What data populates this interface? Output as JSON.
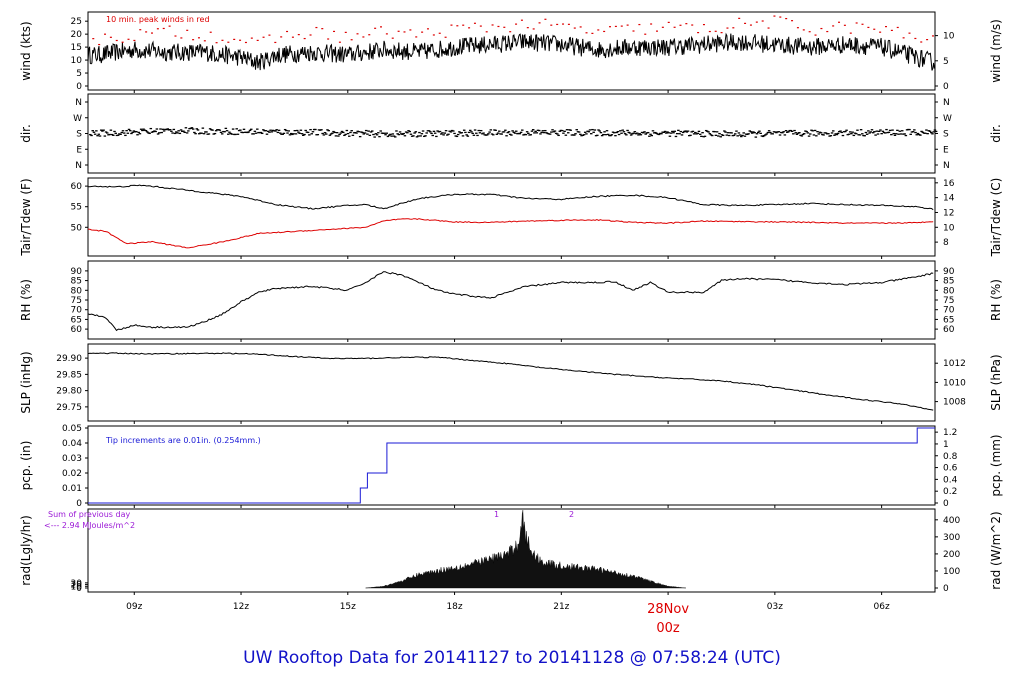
{
  "chart_data": {
    "type": "line",
    "x_ticks": [
      "09z",
      "12z",
      "15z",
      "18z",
      "21z",
      "00z",
      "03z",
      "06z"
    ],
    "date_label": "28Nov",
    "panels": [
      {
        "id": "wind",
        "left_label": "wind (kts)",
        "right_label": "wind (m/s)",
        "left_ticks": [
          0,
          5,
          10,
          15,
          20,
          25
        ],
        "right_ticks": [
          0,
          5,
          10
        ],
        "ylim": [
          0,
          27
        ],
        "annotation": "10 min. peak winds in red",
        "series": [
          {
            "color": "#000000",
            "style": "noisy",
            "x": [
              8.0,
              9.0,
              10.0,
              11.0,
              12.0,
              12.5,
              13.0,
              14.0,
              15.0,
              16.0,
              17.0,
              18.0,
              19.0,
              20.0,
              21.0,
              22.0,
              23.0,
              24.0,
              25.0,
              26.0,
              27.0,
              28.0,
              29.0,
              30.0,
              31.5
            ],
            "y": [
              12,
              14,
              13,
              13,
              11,
              9,
              12,
              13,
              12,
              14,
              13,
              15,
              16,
              17,
              16,
              14,
              15,
              15,
              16,
              17,
              16,
              15,
              16,
              15,
              9
            ],
            "noise": 3.5
          },
          {
            "color": "#dd0000",
            "style": "dots",
            "x": [
              8.0,
              9.0,
              10.0,
              11.0,
              12.0,
              12.5,
              13.0,
              14.0,
              15.0,
              16.0,
              17.0,
              18.0,
              19.0,
              20.0,
              21.0,
              22.0,
              23.0,
              24.0,
              25.0,
              26.0,
              27.0,
              28.0,
              29.0,
              30.0,
              31.5
            ],
            "y": [
              18,
              20,
              21,
              20,
              18,
              16,
              19,
              21,
              19,
              21,
              20,
              22,
              23,
              24,
              23,
              21,
              22,
              23,
              22,
              24,
              25,
              22,
              23,
              22,
              17
            ],
            "noise": 2.5
          }
        ]
      },
      {
        "id": "dir",
        "left_label": "dir.",
        "right_label": "dir.",
        "left_ticks": [
          "N",
          "E",
          "S",
          "W",
          "N"
        ],
        "right_ticks": [
          "N",
          "E",
          "S",
          "W",
          "N"
        ],
        "ylim": [
          0,
          360
        ],
        "series": [
          {
            "color": "#000000",
            "style": "dashes",
            "x": [
              8,
              10,
              12,
              14,
              16,
              18,
              20,
              22,
              24,
              26,
              28,
              30,
              31.5
            ],
            "y": [
              185,
              200,
              195,
              190,
              180,
              185,
              190,
              188,
              185,
              180,
              185,
              190,
              188
            ],
            "noise": 18
          }
        ]
      },
      {
        "id": "temp",
        "left_label": "Tair/Tdew (F)",
        "right_label": "Tair/Tdew (C)",
        "left_ticks": [
          50,
          55,
          60
        ],
        "right_ticks": [
          8,
          10,
          12,
          14,
          16
        ],
        "ylim": [
          44,
          61
        ],
        "series": [
          {
            "color": "#000000",
            "style": "line",
            "x": [
              7.7,
              8.5,
              9.2,
              10,
              11,
              12,
              13,
              14,
              15,
              15.5,
              16,
              16.5,
              17,
              18,
              19,
              20,
              21,
              22,
              23,
              24,
              25,
              26,
              27,
              28,
              29,
              30,
              31,
              31.5
            ],
            "y": [
              60,
              59.8,
              60.2,
              59.5,
              58.5,
              57.5,
              55.5,
              54.5,
              55.3,
              55.5,
              54.5,
              55.8,
              57,
              58,
              58,
              57,
              56.8,
              57.5,
              57.8,
              57.2,
              55.5,
              55.3,
              55.5,
              55.8,
              55.5,
              55.3,
              55,
              54.3
            ],
            "noise": 0.15
          },
          {
            "color": "#dd0000",
            "style": "line",
            "x": [
              7.7,
              8.2,
              8.8,
              9.5,
              10.5,
              11.5,
              12.5,
              13.5,
              14.5,
              15.5,
              16,
              16.5,
              17,
              18,
              19,
              20,
              21,
              22,
              23,
              24,
              25,
              26,
              27,
              28,
              29,
              30,
              31,
              31.5
            ],
            "y": [
              49.5,
              49,
              46,
              46.5,
              45,
              46.5,
              48.5,
              49,
              49.5,
              50,
              51.5,
              52,
              52,
              51.3,
              51.2,
              51.5,
              51.7,
              51.8,
              51.2,
              51,
              51.5,
              51.4,
              51.3,
              51.2,
              51,
              51,
              51.1,
              51.5
            ],
            "noise": 0.12
          }
        ]
      },
      {
        "id": "rh",
        "left_label": "RH (%)",
        "right_label": "RH (%)",
        "left_ticks": [
          60,
          65,
          70,
          75,
          80,
          85,
          90
        ],
        "right_ticks": [
          60,
          65,
          70,
          75,
          80,
          85,
          90
        ],
        "ylim": [
          58,
          92
        ],
        "series": [
          {
            "color": "#000000",
            "style": "line",
            "x": [
              7.7,
              8.2,
              8.5,
              9,
              9.5,
              10.5,
              11,
              11.5,
              12,
              12.5,
              13,
              14,
              14.5,
              15,
              15.5,
              16,
              16.5,
              17,
              17.5,
              18,
              19,
              20,
              21,
              22,
              22.5,
              23,
              23.5,
              24,
              25,
              25.5,
              26,
              27,
              28,
              29,
              30,
              31,
              31.5
            ],
            "y": [
              68,
              66,
              59.5,
              62,
              61,
              61,
              64,
              68,
              74,
              79,
              81,
              82,
              81,
              80,
              84,
              89.5,
              88,
              84,
              80,
              78,
              76,
              82,
              84,
              84,
              84.5,
              80,
              84,
              79,
              79,
              85,
              86,
              85.5,
              84,
              83,
              84,
              87,
              89
            ],
            "noise": 0.4
          }
        ]
      },
      {
        "id": "slp",
        "left_label": "SLP (inHg)",
        "right_label": "SLP (hPa)",
        "left_ticks": [
          29.75,
          29.8,
          29.85,
          29.9
        ],
        "right_ticks": [
          1008,
          1010,
          1012
        ],
        "ylim": [
          29.725,
          29.925
        ],
        "series": [
          {
            "color": "#000000",
            "style": "line",
            "x": [
              7.7,
              8.5,
              9.5,
              10.5,
              11.5,
              12.5,
              13.5,
              14.5,
              15.5,
              16.5,
              17.5,
              18.5,
              19.5,
              20.5,
              21.5,
              22.5,
              23.5,
              24.5,
              25.5,
              26.5,
              27.5,
              28.5,
              29.5,
              30.5,
              31.5
            ],
            "y": [
              29.915,
              29.915,
              29.913,
              29.914,
              29.915,
              29.912,
              29.905,
              29.899,
              29.899,
              29.902,
              29.903,
              29.893,
              29.883,
              29.87,
              29.86,
              29.85,
              29.842,
              29.836,
              29.83,
              29.818,
              29.802,
              29.786,
              29.772,
              29.76,
              29.74
            ],
            "noise": 0.0015
          }
        ]
      },
      {
        "id": "pcp",
        "left_label": "pcp. (in)",
        "right_label": "pcp. (mm)",
        "left_ticks": [
          0,
          0.01,
          0.02,
          0.03,
          0.04,
          0.05
        ],
        "right_ticks": [
          0,
          0.2,
          0.4,
          0.6,
          0.8,
          1,
          1.2
        ],
        "ylim": [
          0,
          0.05
        ],
        "annotation": "Tip increments are 0.01in. (0.254mm.)",
        "series": [
          {
            "color": "#1a1ad6",
            "style": "step",
            "x": [
              7.7,
              15.35,
              15.35,
              15.55,
              15.55,
              16.1,
              16.1,
              31.0,
              31.0,
              31.5
            ],
            "y": [
              0,
              0,
              0.01,
              0.01,
              0.02,
              0.02,
              0.04,
              0.04,
              0.05,
              0.05
            ]
          }
        ]
      },
      {
        "id": "rad",
        "left_label": "rad(Lgly/hr)",
        "right_label": "rad (W/m^2)",
        "left_ticks": [
          0,
          10,
          20,
          30
        ],
        "right_ticks": [
          0,
          100,
          200,
          300,
          400
        ],
        "ylim": [
          0,
          440
        ],
        "annotation_line1": "Sum of previous day",
        "annotation_line2": "<--- 2.94 MJoules/m^2",
        "markers": [
          "1",
          "2"
        ],
        "series": [
          {
            "color": "#000000",
            "style": "filled",
            "x": [
              15.5,
              16,
              16.5,
              17,
              17.5,
              18,
              18.5,
              19,
              19.5,
              19.8,
              19.9,
              20,
              20.2,
              20.5,
              21,
              21.5,
              22,
              22.5,
              23,
              23.5,
              24,
              24.5
            ],
            "y": [
              0,
              10,
              40,
              80,
              100,
              120,
              140,
              170,
              200,
              260,
              440,
              300,
              200,
              150,
              130,
              120,
              110,
              90,
              70,
              40,
              10,
              0
            ],
            "noise": 35
          }
        ]
      }
    ]
  },
  "footer": {
    "title": "UW Rooftop Data for 20141127  to  20141128 @ 07:58:24  (UTC)"
  }
}
